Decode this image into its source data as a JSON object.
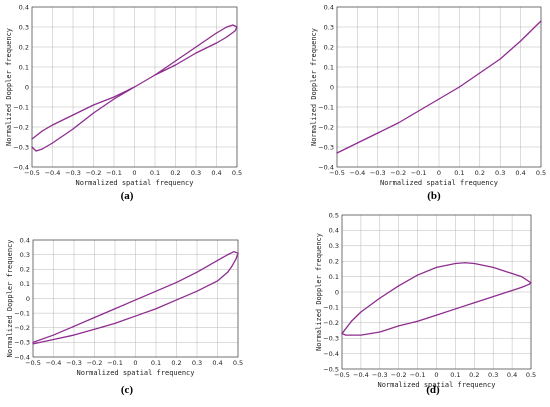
{
  "colors": {
    "curve": "#8e2d8f",
    "grid": "#b8b8b8",
    "frame": "#444444"
  },
  "chart_data": [
    {
      "type": "line",
      "title": "",
      "caption": "(a)",
      "xlabel": "Normalized spatial frequency",
      "ylabel": "Normalized Doppler frequency",
      "xlim": [
        -0.5,
        0.5
      ],
      "ylim": [
        -0.4,
        0.4
      ],
      "xticks": [
        "-0.5",
        "-0.4",
        "-0.3",
        "-0.2",
        "-0.1",
        "0",
        "0.1",
        "0.2",
        "0.3",
        "0.4",
        "0.5"
      ],
      "yticks": [
        "-0.4",
        "-0.3",
        "-0.2",
        "-0.1",
        "0",
        "0.1",
        "0.2",
        "0.3",
        "0.4"
      ],
      "grid": true,
      "series": [
        {
          "x": [
            -0.5,
            -0.45,
            -0.4,
            -0.3,
            -0.2,
            -0.1,
            0,
            0.1,
            0.2,
            0.3,
            0.4,
            0.45,
            0.48,
            0.5,
            0.49,
            0.45,
            0.4,
            0.3,
            0.2,
            0.1,
            0,
            -0.1,
            -0.2,
            -0.3,
            -0.4,
            -0.45,
            -0.48,
            -0.5
          ],
          "y": [
            -0.26,
            -0.22,
            -0.19,
            -0.14,
            -0.09,
            -0.05,
            0,
            0.06,
            0.13,
            0.2,
            0.27,
            0.3,
            0.31,
            0.3,
            0.28,
            0.25,
            0.22,
            0.17,
            0.11,
            0.06,
            0,
            -0.06,
            -0.13,
            -0.21,
            -0.28,
            -0.31,
            -0.32,
            -0.3
          ]
        }
      ]
    },
    {
      "type": "line",
      "title": "",
      "caption": "(b)",
      "xlabel": "Normalized spatial frequency",
      "ylabel": "Normalized Doppler frequency",
      "xlim": [
        -0.5,
        0.5
      ],
      "ylim": [
        -0.4,
        0.4
      ],
      "xticks": [
        "-0.5",
        "-0.4",
        "-0.3",
        "-0.2",
        "-0.1",
        "0",
        "0.1",
        "0.2",
        "0.3",
        "0.4",
        "0.5"
      ],
      "yticks": [
        "-0.4",
        "-0.3",
        "-0.2",
        "-0.1",
        "0",
        "0.1",
        "0.2",
        "0.3",
        "0.4"
      ],
      "grid": true,
      "series": [
        {
          "x": [
            -0.5,
            -0.4,
            -0.3,
            -0.2,
            -0.1,
            0,
            0.1,
            0.2,
            0.3,
            0.4,
            0.5
          ],
          "y": [
            -0.33,
            -0.28,
            -0.23,
            -0.18,
            -0.12,
            -0.06,
            0.0,
            0.07,
            0.14,
            0.23,
            0.33
          ]
        }
      ]
    },
    {
      "type": "line",
      "title": "",
      "caption": "(c)",
      "xlabel": "Normalized spatial frequency",
      "ylabel": "Normalized Doppler frequency",
      "xlim": [
        -0.5,
        0.5
      ],
      "ylim": [
        -0.4,
        0.4
      ],
      "xticks": [
        "-0.5",
        "-0.4",
        "-0.3",
        "-0.2",
        "-0.1",
        "0",
        "0.1",
        "0.2",
        "0.3",
        "0.4",
        "0.5"
      ],
      "yticks": [
        "-0.4",
        "-0.3",
        "-0.2",
        "-0.1",
        "0",
        "0.1",
        "0.2",
        "0.3",
        "0.4"
      ],
      "grid": true,
      "series": [
        {
          "x": [
            -0.5,
            -0.4,
            -0.3,
            -0.2,
            -0.1,
            0,
            0.1,
            0.2,
            0.3,
            0.4,
            0.45,
            0.48,
            0.5,
            0.49,
            0.47,
            0.45,
            0.4,
            0.3,
            0.2,
            0.1,
            0,
            -0.1,
            -0.2,
            -0.3,
            -0.4,
            -0.5
          ],
          "y": [
            -0.3,
            -0.25,
            -0.19,
            -0.13,
            -0.07,
            -0.01,
            0.05,
            0.11,
            0.18,
            0.26,
            0.3,
            0.32,
            0.31,
            0.27,
            0.22,
            0.18,
            0.12,
            0.05,
            -0.01,
            -0.07,
            -0.12,
            -0.17,
            -0.21,
            -0.25,
            -0.28,
            -0.31
          ]
        }
      ]
    },
    {
      "type": "line",
      "title": "",
      "caption": "(d)",
      "xlabel": "Normalized spatial frequency",
      "ylabel": "Normalized Doppler frequency",
      "xlim": [
        -0.5,
        0.5
      ],
      "ylim": [
        -0.5,
        0.5
      ],
      "xticks": [
        "-0.5",
        "-0.4",
        "-0.3",
        "-0.2",
        "-0.1",
        "0",
        "0.1",
        "0.2",
        "0.3",
        "0.4",
        "0.5"
      ],
      "yticks": [
        "-0.5",
        "-0.4",
        "-0.3",
        "-0.2",
        "-0.1",
        "0",
        "0.1",
        "0.2",
        "0.3",
        "0.4",
        "0.5"
      ],
      "grid": true,
      "series": [
        {
          "x": [
            -0.5,
            -0.45,
            -0.4,
            -0.3,
            -0.2,
            -0.1,
            0,
            0.1,
            0.15,
            0.2,
            0.3,
            0.4,
            0.45,
            0.5,
            0.49,
            0.45,
            0.4,
            0.3,
            0.2,
            0.1,
            0,
            -0.1,
            -0.2,
            -0.3,
            -0.4,
            -0.45,
            -0.48,
            -0.5
          ],
          "y": [
            -0.27,
            -0.19,
            -0.13,
            -0.04,
            0.04,
            0.11,
            0.16,
            0.185,
            0.19,
            0.185,
            0.16,
            0.12,
            0.1,
            0.06,
            0.05,
            0.03,
            0.01,
            -0.03,
            -0.07,
            -0.11,
            -0.15,
            -0.19,
            -0.22,
            -0.26,
            -0.28,
            -0.28,
            -0.28,
            -0.27
          ]
        }
      ]
    }
  ]
}
